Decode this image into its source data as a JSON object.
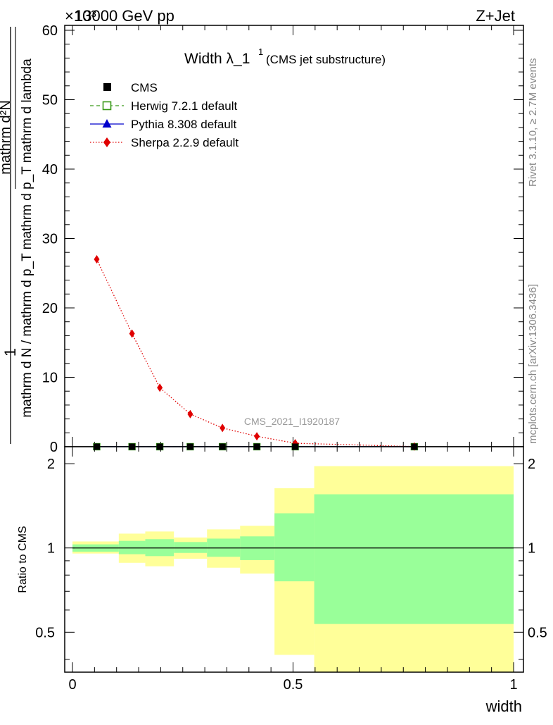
{
  "header": {
    "energy": "13000 GeV pp",
    "process": "Z+Jet",
    "exponent": "×10³"
  },
  "plot": {
    "title_main": "Width λ_1",
    "title_sup": "1",
    "title_sub": "(CMS jet substructure)",
    "analysis_tag": "CMS_2021_I1920187",
    "side_rivet": "Rivet 3.1.10, ≥ 2.7M events",
    "side_mcplots": "mcplots.cern.ch [arXiv:1306.3436]",
    "ylabel_top": "1",
    "ylabel_numerator": "mathrm d²N",
    "ylabel_denominator": "mathrm d N / mathrm d p_T mathrm d p_T mathrm d lambda",
    "ratio_ylabel": "Ratio to CMS",
    "xlabel": "width"
  },
  "legend": [
    {
      "label": "CMS",
      "color": "#000000",
      "marker": "square"
    },
    {
      "label": "Herwig 7.2.1 default",
      "color": "#3a9a1a",
      "marker": "open-square",
      "dash": "dashed"
    },
    {
      "label": "Pythia 8.308 default",
      "color": "#0000cc",
      "marker": "triangle",
      "dash": "solid"
    },
    {
      "label": "Sherpa 2.2.9 default",
      "color": "#e00000",
      "marker": "diamond",
      "dash": "dotted"
    }
  ],
  "chart_data": {
    "type": "line",
    "main": {
      "xlim": [
        0,
        1
      ],
      "ylim": [
        0,
        60
      ],
      "y_ticks": [
        0,
        10,
        20,
        30,
        40,
        50,
        60
      ],
      "series": [
        {
          "name": "CMS",
          "x": [
            0.055,
            0.135,
            0.198,
            0.267,
            0.34,
            0.418,
            0.505,
            0.775
          ],
          "y": [
            0,
            0,
            0,
            0,
            0,
            0,
            0,
            0
          ]
        },
        {
          "name": "Herwig 7.2.1 default",
          "x": [
            0.055,
            0.135,
            0.198,
            0.267,
            0.34,
            0.418,
            0.505,
            0.775
          ],
          "y": [
            0,
            0,
            0,
            0,
            0,
            0,
            0,
            0
          ]
        },
        {
          "name": "Pythia 8.308 default",
          "x": [
            0.055,
            0.135,
            0.198,
            0.267,
            0.34,
            0.418,
            0.505,
            0.775
          ],
          "y": [
            0,
            0,
            0,
            0,
            0,
            0,
            0,
            0
          ]
        },
        {
          "name": "Sherpa 2.2.9 default",
          "x": [
            0.055,
            0.135,
            0.198,
            0.267,
            0.34,
            0.418,
            0.505,
            0.775
          ],
          "y": [
            27.0,
            16.3,
            8.5,
            4.7,
            2.7,
            1.5,
            0.5,
            0.02
          ]
        }
      ]
    },
    "ratio": {
      "xlim": [
        0,
        1
      ],
      "ylim": [
        0.36,
        2.3
      ],
      "y_ticks": [
        0.5,
        1,
        2
      ],
      "x_ticks": [
        0,
        0.5,
        1
      ],
      "bins": [
        {
          "lo": 0.0,
          "hi": 0.105,
          "inner": [
            0.97,
            1.03
          ],
          "outer": [
            0.955,
            1.055
          ]
        },
        {
          "lo": 0.105,
          "hi": 0.165,
          "inner": [
            0.95,
            1.06
          ],
          "outer": [
            0.885,
            1.125
          ]
        },
        {
          "lo": 0.165,
          "hi": 0.23,
          "inner": [
            0.935,
            1.075
          ],
          "outer": [
            0.86,
            1.145
          ]
        },
        {
          "lo": 0.23,
          "hi": 0.305,
          "inner": [
            0.96,
            1.05
          ],
          "outer": [
            0.915,
            1.09
          ]
        },
        {
          "lo": 0.305,
          "hi": 0.38,
          "inner": [
            0.93,
            1.08
          ],
          "outer": [
            0.85,
            1.165
          ]
        },
        {
          "lo": 0.38,
          "hi": 0.458,
          "inner": [
            0.905,
            1.1
          ],
          "outer": [
            0.81,
            1.2
          ]
        },
        {
          "lo": 0.458,
          "hi": 0.548,
          "inner": [
            0.76,
            1.33
          ],
          "outer": [
            0.415,
            1.635
          ]
        },
        {
          "lo": 0.548,
          "hi": 1.0,
          "inner": [
            0.535,
            1.555
          ],
          "outer": [
            0.36,
            1.96
          ]
        }
      ]
    }
  }
}
